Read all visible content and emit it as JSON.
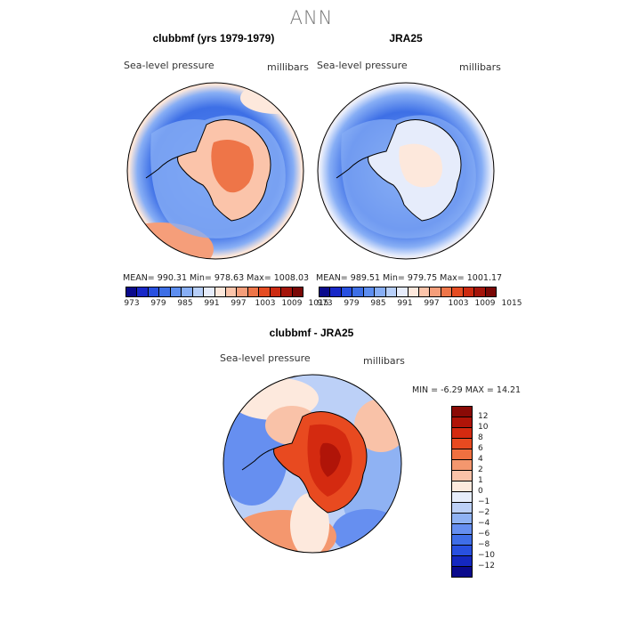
{
  "title": "ANN",
  "panels": [
    {
      "title": "clubbmf (yrs 1979-1979)",
      "variable": "Sea-level pressure",
      "units": "millibars",
      "stats": "MEAN= 990.31    Min= 978.63    Max= 1008.03"
    },
    {
      "title": "JRA25",
      "variable": "Sea-level pressure",
      "units": "millibars",
      "stats": "MEAN= 989.51    Min= 979.75    Max= 1001.17"
    }
  ],
  "colorbar_top": {
    "colors": [
      "#0a0a8c",
      "#1828c8",
      "#2850e0",
      "#3d6fe6",
      "#5d8ef0",
      "#87aef5",
      "#b7cff9",
      "#e6ecfb",
      "#fde8dc",
      "#fbc4aa",
      "#f59e7a",
      "#ee7548",
      "#e54c22",
      "#cc2a10",
      "#a4140a",
      "#7a0806"
    ],
    "tick_labels": [
      "973",
      "979",
      "985",
      "991",
      "997",
      "1003",
      "1009",
      "1015"
    ]
  },
  "difference": {
    "title": "clubbmf - JRA25",
    "variable": "Sea-level pressure",
    "units": "millibars",
    "stats": "MIN =   -6.29  MAX =   14.21",
    "colorbar": {
      "colors": [
        "#8a0a06",
        "#b01408",
        "#d42a10",
        "#e84a20",
        "#f07040",
        "#f4976e",
        "#f9c2a8",
        "#fde9dd",
        "#e6edfb",
        "#bcd0f7",
        "#8fb2f3",
        "#668ff0",
        "#3f6ee8",
        "#2850e0",
        "#1428c0",
        "#0a0a8c"
      ],
      "labels": [
        "12",
        "10",
        "8",
        "6",
        "4",
        "2",
        "1",
        "0",
        "−1",
        "−2",
        "−4",
        "−6",
        "−8",
        "−10",
        "−12"
      ]
    }
  }
}
